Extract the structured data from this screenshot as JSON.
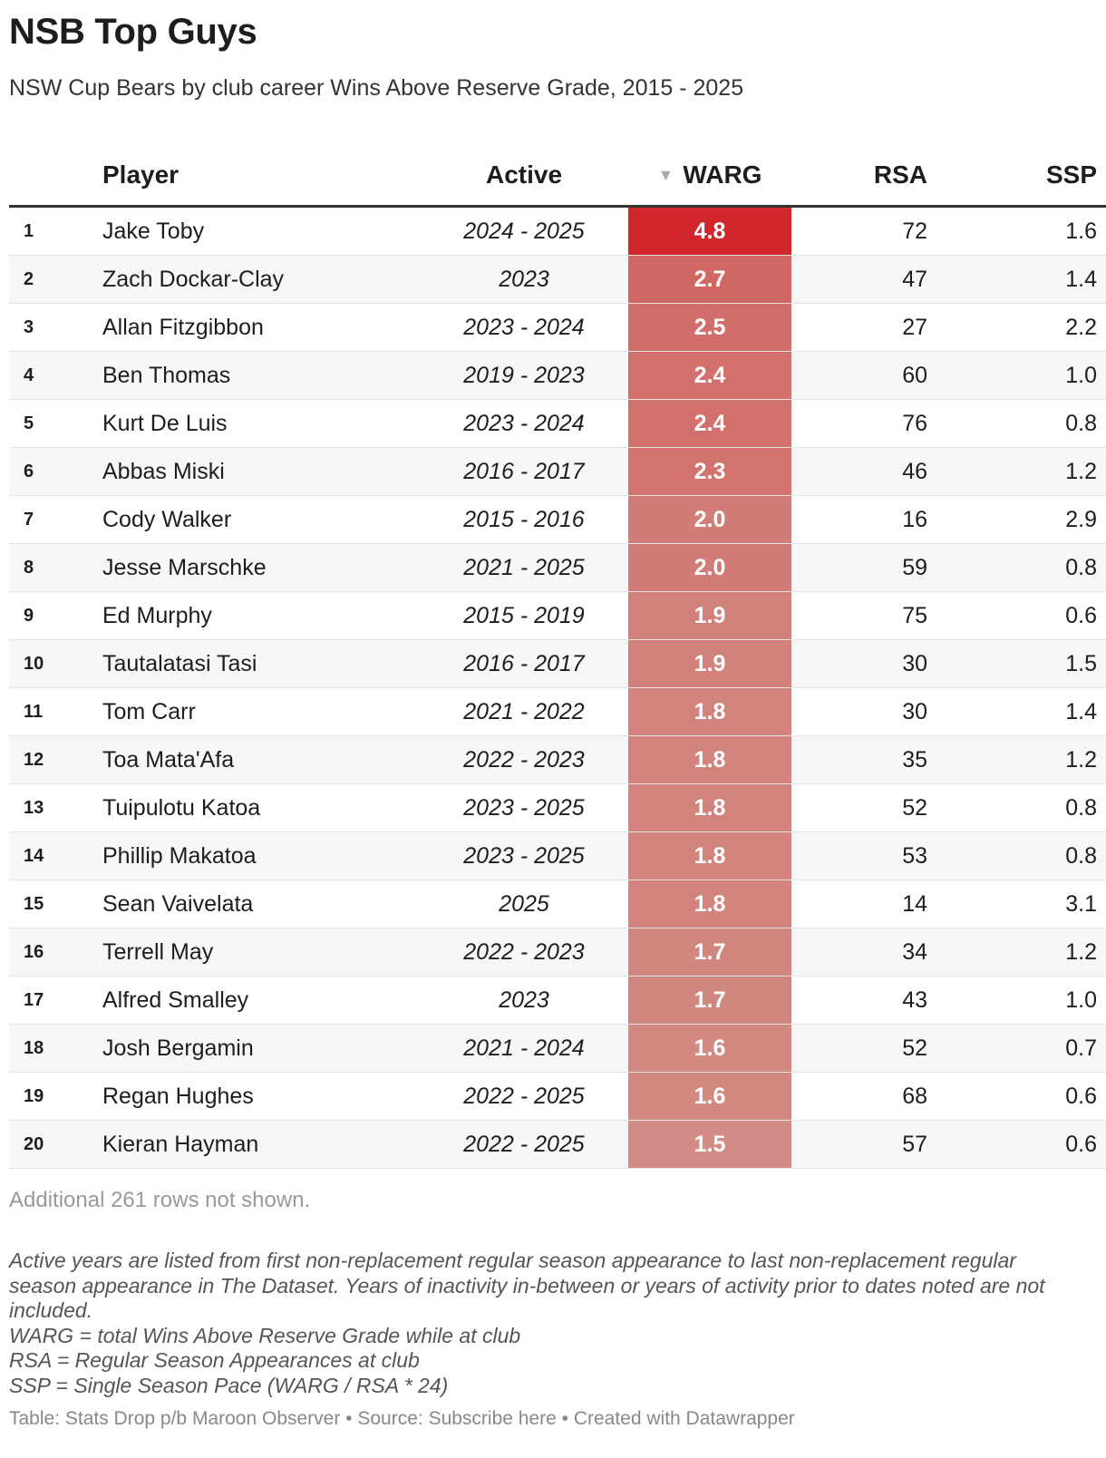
{
  "title": "NSB Top Guys",
  "subtitle": "NSW Cup Bears by club career Wins Above Reserve Grade, 2015 - 2025",
  "columns": {
    "rank": "",
    "player": "Player",
    "active": "Active",
    "warg": "WARG",
    "rsa": "RSA",
    "ssp": "SSP"
  },
  "sort_arrow": "▼",
  "colors": {
    "warg_max": "#d0252b",
    "warg_min": "#d28c85"
  },
  "chart_data": {
    "type": "table",
    "title": "NSB Top Guys",
    "subtitle": "NSW Cup Bears by club career Wins Above Reserve Grade, 2015 - 2025",
    "columns": [
      "",
      "Player",
      "Active",
      "WARG",
      "RSA",
      "SSP"
    ],
    "sorted_by": "WARG",
    "rows": [
      {
        "rank": "1",
        "player": "Jake Toby",
        "active": "2024 - 2025",
        "warg": "4.8",
        "rsa": "72",
        "ssp": "1.6"
      },
      {
        "rank": "2",
        "player": "Zach Dockar-Clay",
        "active": "2023",
        "warg": "2.7",
        "rsa": "47",
        "ssp": "1.4"
      },
      {
        "rank": "3",
        "player": "Allan Fitzgibbon",
        "active": "2023 - 2024",
        "warg": "2.5",
        "rsa": "27",
        "ssp": "2.2"
      },
      {
        "rank": "4",
        "player": "Ben Thomas",
        "active": "2019 - 2023",
        "warg": "2.4",
        "rsa": "60",
        "ssp": "1.0"
      },
      {
        "rank": "5",
        "player": "Kurt De Luis",
        "active": "2023 - 2024",
        "warg": "2.4",
        "rsa": "76",
        "ssp": "0.8"
      },
      {
        "rank": "6",
        "player": "Abbas Miski",
        "active": "2016 - 2017",
        "warg": "2.3",
        "rsa": "46",
        "ssp": "1.2"
      },
      {
        "rank": "7",
        "player": "Cody Walker",
        "active": "2015 - 2016",
        "warg": "2.0",
        "rsa": "16",
        "ssp": "2.9"
      },
      {
        "rank": "8",
        "player": "Jesse Marschke",
        "active": "2021 - 2025",
        "warg": "2.0",
        "rsa": "59",
        "ssp": "0.8"
      },
      {
        "rank": "9",
        "player": "Ed Murphy",
        "active": "2015 - 2019",
        "warg": "1.9",
        "rsa": "75",
        "ssp": "0.6"
      },
      {
        "rank": "10",
        "player": "Tautalatasi Tasi",
        "active": "2016 - 2017",
        "warg": "1.9",
        "rsa": "30",
        "ssp": "1.5"
      },
      {
        "rank": "11",
        "player": "Tom Carr",
        "active": "2021 - 2022",
        "warg": "1.8",
        "rsa": "30",
        "ssp": "1.4"
      },
      {
        "rank": "12",
        "player": "Toa Mata'Afa",
        "active": "2022 - 2023",
        "warg": "1.8",
        "rsa": "35",
        "ssp": "1.2"
      },
      {
        "rank": "13",
        "player": "Tuipulotu Katoa",
        "active": "2023 - 2025",
        "warg": "1.8",
        "rsa": "52",
        "ssp": "0.8"
      },
      {
        "rank": "14",
        "player": "Phillip Makatoa",
        "active": "2023 - 2025",
        "warg": "1.8",
        "rsa": "53",
        "ssp": "0.8"
      },
      {
        "rank": "15",
        "player": "Sean Vaivelata",
        "active": "2025",
        "warg": "1.8",
        "rsa": "14",
        "ssp": "3.1"
      },
      {
        "rank": "16",
        "player": "Terrell May",
        "active": "2022 - 2023",
        "warg": "1.7",
        "rsa": "34",
        "ssp": "1.2"
      },
      {
        "rank": "17",
        "player": "Alfred Smalley",
        "active": "2023",
        "warg": "1.7",
        "rsa": "43",
        "ssp": "1.0"
      },
      {
        "rank": "18",
        "player": "Josh Bergamin",
        "active": "2021 - 2024",
        "warg": "1.6",
        "rsa": "52",
        "ssp": "0.7"
      },
      {
        "rank": "19",
        "player": "Regan Hughes",
        "active": "2022 - 2025",
        "warg": "1.6",
        "rsa": "68",
        "ssp": "0.6"
      },
      {
        "rank": "20",
        "player": "Kieran Hayman",
        "active": "2022 - 2025",
        "warg": "1.5",
        "rsa": "57",
        "ssp": "0.6"
      }
    ]
  },
  "notice": "Additional 261 rows not shown.",
  "notes": [
    "Active years are listed from first non-replacement regular season appearance to last non-replacement regular season appearance in The Dataset. Years of inactivity in-between or years of activity prior to dates noted are not included.",
    "WARG = total Wins Above Reserve Grade while at club",
    "RSA = Regular Season Appearances at club",
    "SSP = Single Season Pace (WARG / RSA * 24)"
  ],
  "source": "Table: Stats Drop p/b Maroon Observer • Source: Subscribe here • Created with Datawrapper"
}
